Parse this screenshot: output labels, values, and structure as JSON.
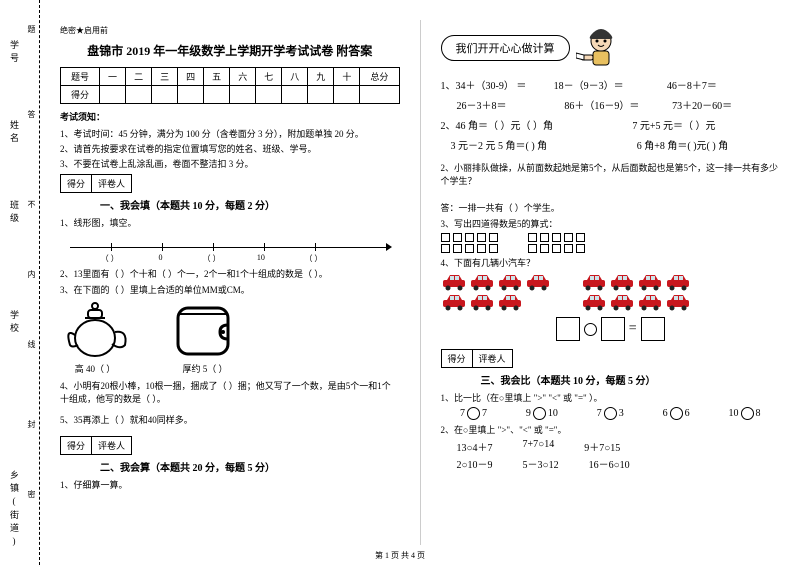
{
  "binding": {
    "labels": [
      "学号",
      "姓名",
      "班级",
      "学校",
      "乡镇(街道)"
    ],
    "inner": [
      "题",
      "答",
      "不",
      "内",
      "线",
      "封",
      "密"
    ]
  },
  "header": {
    "seal": "绝密★启用前",
    "title": "盘锦市 2019 年一年级数学上学期开学考试试卷 附答案",
    "score_cols": [
      "题号",
      "一",
      "二",
      "三",
      "四",
      "五",
      "六",
      "七",
      "八",
      "九",
      "十",
      "总分"
    ],
    "score_row_label": "得分"
  },
  "notice": {
    "head": "考试须知：",
    "items": [
      "1、考试时间：45 分钟，满分为 100 分（含卷面分 3 分），附加题单独 20 分。",
      "2、请首先按要求在试卷的指定位置填写您的姓名、班级、学号。",
      "3、不要在试卷上乱涂乱画，卷面不整洁扣 3 分。"
    ]
  },
  "gradebox": {
    "a": "得分",
    "b": "评卷人"
  },
  "section1": {
    "title": "一、我会填（本题共 10 分，每题 2 分）",
    "q1": "1、线形图，填空。",
    "ruler_labels": [
      "（  ）",
      "0",
      "（  ）",
      "10",
      "（  ）"
    ],
    "q2": "2、13里面有（  ）个十和（  ）个一，2个一和1个十组成的数是（  ）。",
    "q3": "3、在下面的（   ）里填上合适的单位MM或CM。",
    "teapot_label": "高 40（   ）",
    "wallet_label": "厚约 5（   ）",
    "q4": "4、小明有20根小棒，10根一捆，捆成了（  ）捆；他又写了一个数，是由5个一和1个十组成，他写的数是（   ）。",
    "q5": "5、35再添上（   ）就和40同样多。"
  },
  "section2": {
    "title": "二、我会算（本题共 20 分，每题 5 分）",
    "q1": "1、仔细算一算。"
  },
  "right": {
    "bubble": "我们开开心心做计算",
    "calc": {
      "l1": "1、34＋（30-9） ＝",
      "l1b": "18－（9－3）＝",
      "l1c": "46－8＋7＝",
      "l2": "26－3＋8＝",
      "l2b": "86＋（16－9）＝",
      "l2c": "73＋20－60＝",
      "l3": "2、46 角＝（  ）元（   ）角",
      "l3b": "7 元+5 元＝（   ）元",
      "l4": "3 元－2 元 5 角＝(   ) 角",
      "l4b": "6 角+8 角＝(   )元(   ) 角"
    },
    "q2": "2、小丽排队做操，从前面数起她是第5个，从后面数起也是第5个，这一排一共有多少个学生？",
    "ans": "答：一排一共有（  ）个学生。",
    "q3": "3、写出四道得数是5的算式：",
    "q4": "4、下面有几辆小汽车？",
    "section3_title": "三、我会比（本题共 10 分，每题 5 分）",
    "cmp_head": "1、比一比（在○里填上 \">\" \"<\" 或 \"=\" ）。",
    "cmp_vals": [
      [
        "7",
        "7"
      ],
      [
        "9",
        "10"
      ],
      [
        "7",
        "3"
      ],
      [
        "6",
        "6"
      ],
      [
        "10",
        "8"
      ]
    ],
    "cmp2_head": "2、在○里填上 \">\"、\"<\" 或 \"=\"。",
    "cmp2_rows": [
      [
        "13○4＋7",
        "7+7○14",
        "9＋7○15"
      ],
      [
        "2○10－9",
        "5－3○12",
        "16－6○10"
      ]
    ]
  },
  "footer": "第 1 页 共 4 页",
  "colors": {
    "car_red": "#c8171e",
    "car_dark": "#3b1f1f"
  }
}
